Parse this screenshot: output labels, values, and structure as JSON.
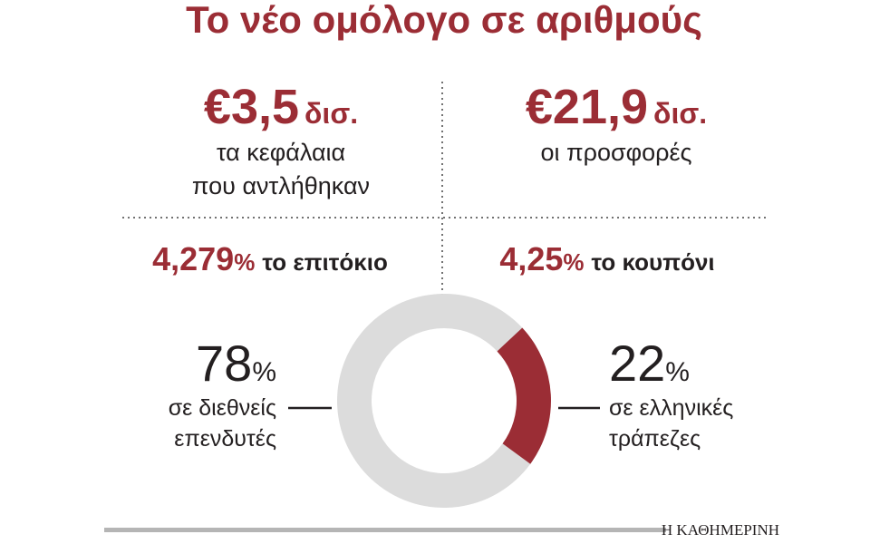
{
  "title": "Το νέο ομόλογο σε αριθμούς",
  "stats": [
    {
      "amount": "€3,5",
      "unit": "δισ.",
      "lines": [
        "τα κεφάλαια",
        "που αντλήθηκαν"
      ]
    },
    {
      "amount": "€21,9",
      "unit": "δισ.",
      "lines": [
        "οι προσφορές"
      ]
    }
  ],
  "rates": [
    {
      "value": "4,279",
      "unit": "%",
      "label": "το επιτόκιο"
    },
    {
      "value": "4,25",
      "unit": "%",
      "label": "το κουπόνι"
    }
  ],
  "chart_data": {
    "type": "pie",
    "donut": true,
    "values": [
      78,
      22
    ],
    "unit": "%",
    "labels": [
      [
        "σε διεθνείς",
        "επενδυτές"
      ],
      [
        "σε ελληνικές",
        "τράπεζες"
      ]
    ],
    "colors": [
      "#dcdcdc",
      "#9b2d35"
    ]
  },
  "footer": "Η ΚΑΘΗΜΕΡΙΝΗ"
}
